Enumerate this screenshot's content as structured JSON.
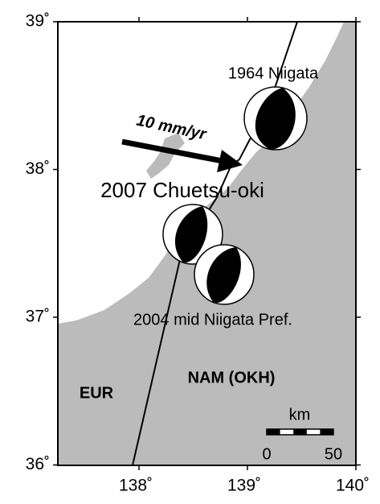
{
  "map": {
    "lat_ticks": [
      {
        "value": 39,
        "label": "39˚"
      },
      {
        "value": 38,
        "label": "38˚"
      },
      {
        "value": 37,
        "label": "37˚"
      },
      {
        "value": 36,
        "label": "36˚"
      }
    ],
    "lon_ticks": [
      {
        "value": 138,
        "label": "138˚"
      },
      {
        "value": 139,
        "label": "139˚"
      },
      {
        "value": 140,
        "label": "140˚"
      }
    ],
    "labels": {
      "niigata_1964": "1964 Niigata",
      "velocity": "10 mm/yr",
      "chuetsu_2007": "2007 Chuetsu-oki",
      "niigata_2004": "2004 mid Niigata Pref.",
      "eur": "EUR",
      "nam": "NAM (OKH)"
    },
    "scale_bar": {
      "unit": "km",
      "start": 0,
      "end": 50
    }
  }
}
